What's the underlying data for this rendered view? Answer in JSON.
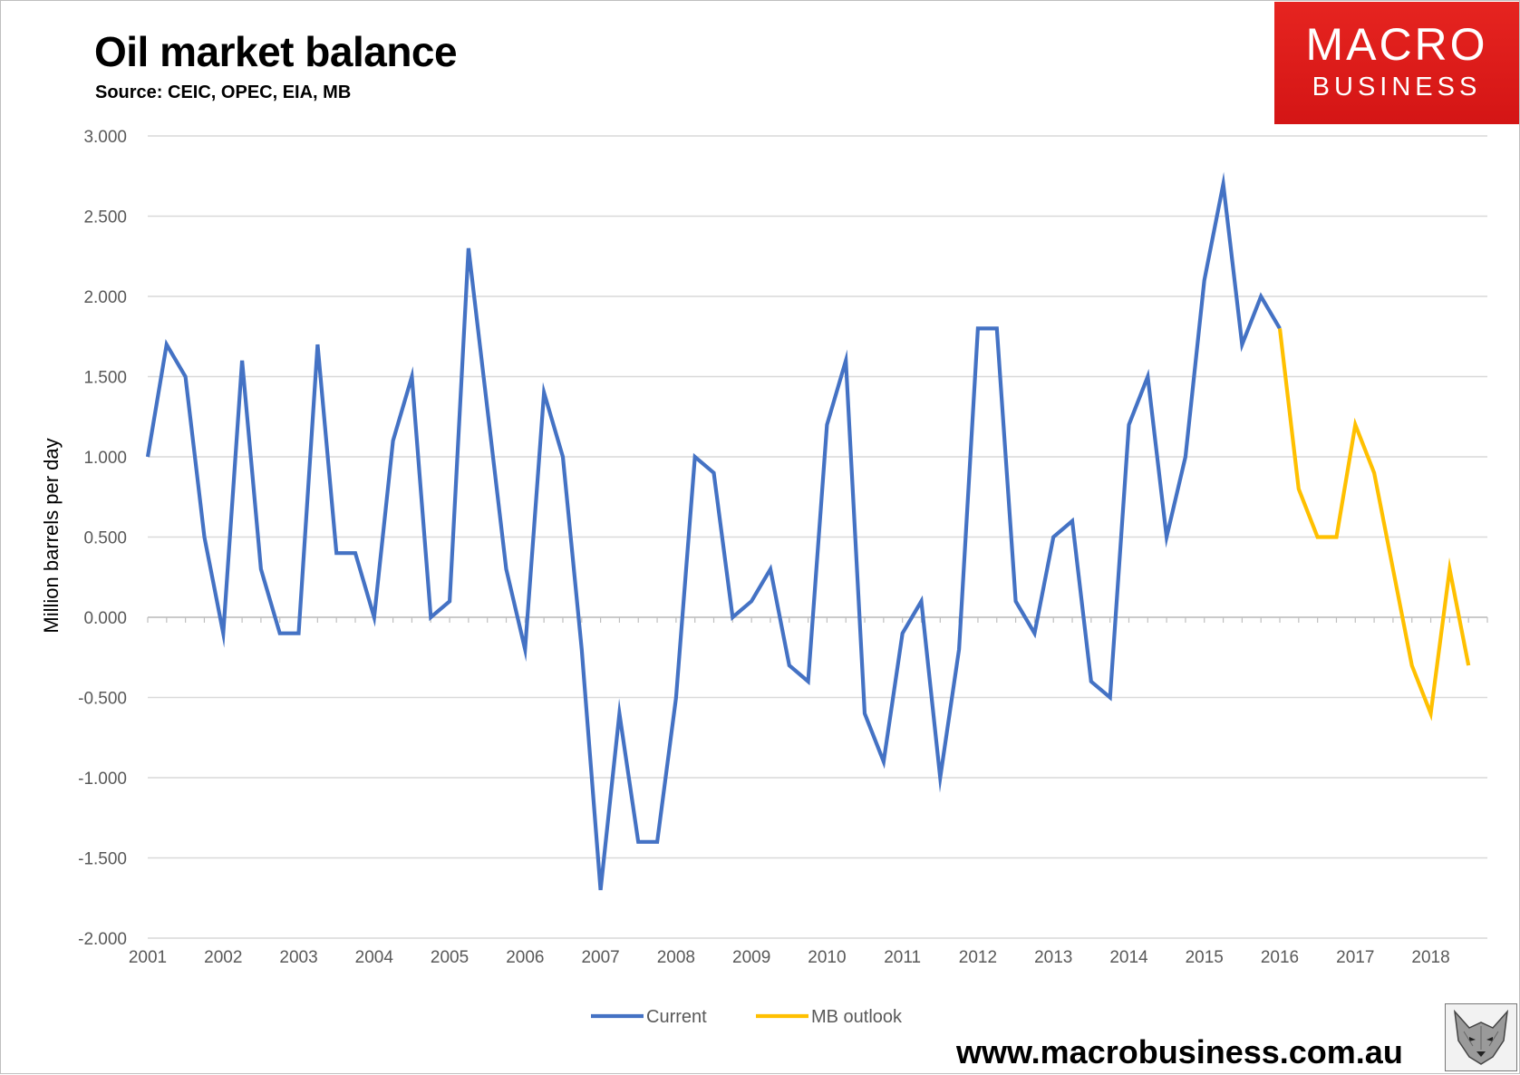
{
  "header": {
    "title": "Oil market balance",
    "subtitle": "Source: CEIC, OPEC, EIA, MB"
  },
  "logo": {
    "line1": "MACRO",
    "line2": "BUSINESS",
    "color": "#e02020"
  },
  "footer": {
    "website": "www.macrobusiness.com.au",
    "mascot_icon": "wolf-icon"
  },
  "chart_data": {
    "type": "line",
    "ylabel": "Million barrels per day",
    "xlabel": "",
    "ylim": [
      -2.0,
      3.0
    ],
    "y_ticks": [
      "3.000",
      "2.500",
      "2.000",
      "1.500",
      "1.000",
      "0.500",
      "0.000",
      "-0.500",
      "-1.000",
      "-1.500",
      "-2.000"
    ],
    "x_ticks": [
      "2001",
      "2002",
      "2003",
      "2004",
      "2005",
      "2006",
      "2007",
      "2008",
      "2009",
      "2010",
      "2011",
      "2012",
      "2013",
      "2014",
      "2015",
      "2016",
      "2017",
      "2018"
    ],
    "x_range": [
      2001.0,
      2018.75
    ],
    "grid": true,
    "legend_position": "bottom",
    "series": [
      {
        "name": "Current",
        "color": "#4472c4",
        "x": [
          2001.0,
          2001.25,
          2001.5,
          2001.75,
          2002.0,
          2002.25,
          2002.5,
          2002.75,
          2003.0,
          2003.25,
          2003.5,
          2003.75,
          2004.0,
          2004.25,
          2004.5,
          2004.75,
          2005.0,
          2005.25,
          2005.5,
          2005.75,
          2006.0,
          2006.25,
          2006.5,
          2006.75,
          2007.0,
          2007.25,
          2007.5,
          2007.75,
          2008.0,
          2008.25,
          2008.5,
          2008.75,
          2009.0,
          2009.25,
          2009.5,
          2009.75,
          2010.0,
          2010.25,
          2010.5,
          2010.75,
          2011.0,
          2011.25,
          2011.5,
          2011.75,
          2012.0,
          2012.25,
          2012.5,
          2012.75,
          2013.0,
          2013.25,
          2013.5,
          2013.75,
          2014.0,
          2014.25,
          2014.5,
          2014.75,
          2015.0,
          2015.25,
          2015.5,
          2015.75,
          2016.0
        ],
        "values": [
          1.0,
          1.7,
          1.5,
          0.5,
          -0.1,
          1.6,
          0.3,
          -0.1,
          -0.1,
          1.7,
          0.4,
          0.4,
          0.0,
          1.1,
          1.5,
          0.0,
          0.1,
          2.3,
          1.3,
          0.3,
          -0.2,
          1.4,
          1.0,
          -0.2,
          -1.7,
          -0.6,
          -1.4,
          -1.4,
          -0.5,
          1.0,
          0.9,
          0.0,
          0.1,
          0.3,
          -0.3,
          -0.4,
          1.2,
          1.6,
          -0.6,
          -0.9,
          -0.1,
          0.1,
          -1.0,
          -0.2,
          1.8,
          1.8,
          0.1,
          -0.1,
          0.5,
          0.6,
          -0.4,
          -0.5,
          1.2,
          1.5,
          0.5,
          1.0,
          2.1,
          2.7,
          1.7,
          2.0,
          1.8
        ]
      },
      {
        "name": "MB outlook",
        "color": "#ffc000",
        "x": [
          2016.0,
          2016.25,
          2016.5,
          2016.75,
          2017.0,
          2017.25,
          2017.5,
          2017.75,
          2018.0,
          2018.25,
          2018.5,
          2018.75
        ],
        "values": [
          1.8,
          0.8,
          0.5,
          0.5,
          1.2,
          0.9,
          0.3,
          -0.3,
          -0.6,
          0.3,
          -0.3,
          null
        ]
      }
    ]
  }
}
